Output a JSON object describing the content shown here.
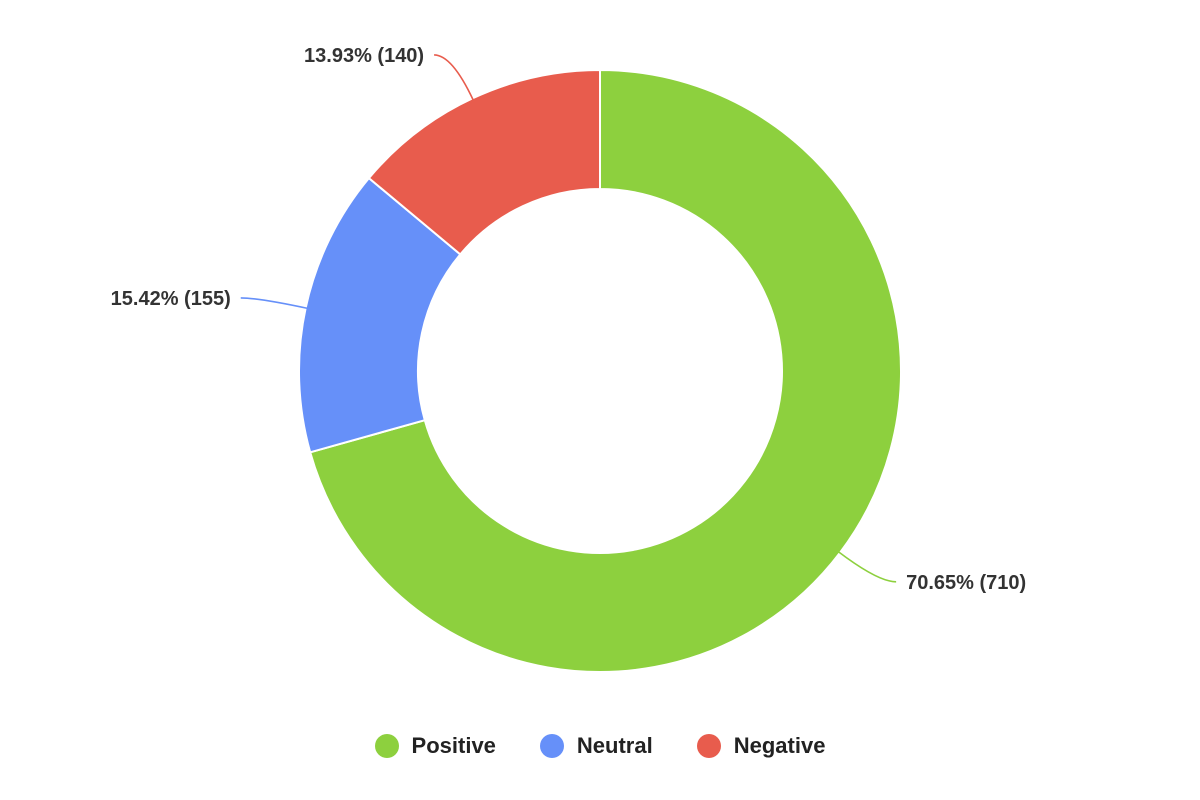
{
  "chart_data": {
    "type": "pie",
    "variant": "donut",
    "title": "",
    "legend_position": "bottom",
    "series": [
      {
        "name": "Positive",
        "value": 710,
        "percent": 70.65,
        "label": "70.65% (710)",
        "color": "#8DD03E"
      },
      {
        "name": "Neutral",
        "value": 155,
        "percent": 15.42,
        "label": "15.42% (155)",
        "color": "#6690F9"
      },
      {
        "name": "Negative",
        "value": 140,
        "percent": 13.93,
        "label": "13.93% (140)",
        "color": "#E85C4D"
      }
    ]
  },
  "legend": {
    "items": [
      {
        "label": "Positive",
        "color": "#8DD03E"
      },
      {
        "label": "Neutral",
        "color": "#6690F9"
      },
      {
        "label": "Negative",
        "color": "#E85C4D"
      }
    ]
  }
}
